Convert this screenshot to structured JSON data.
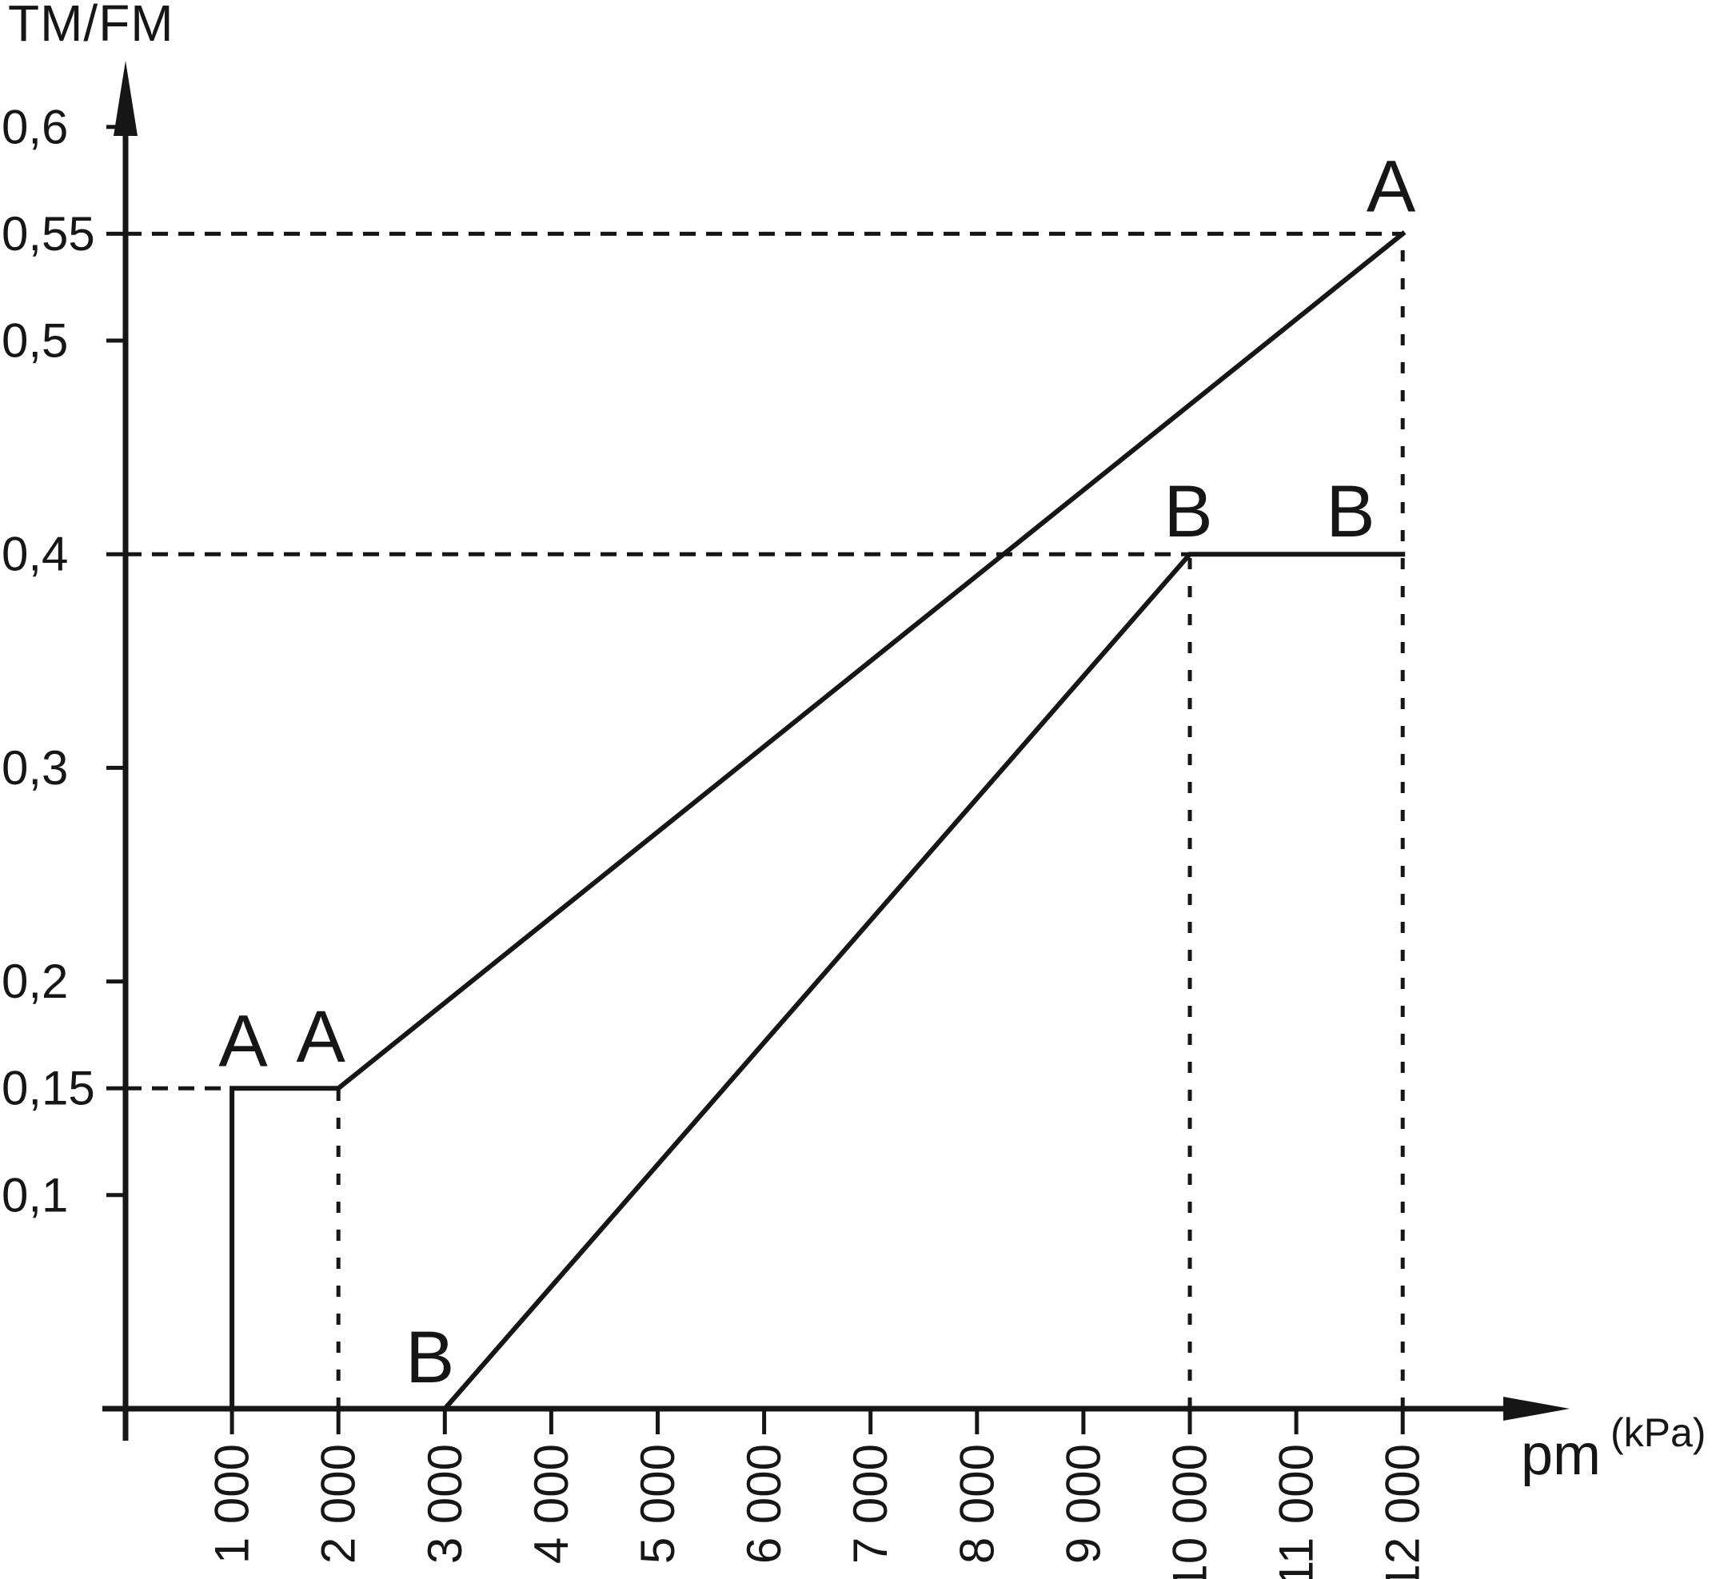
{
  "figure": {
    "y_axis_title": "TM/FM",
    "x_axis_label": "pm",
    "x_axis_unit": "(kPa)"
  },
  "chart_data": {
    "type": "line",
    "title": "",
    "xlabel": "pm (kPa)",
    "ylabel": "TM/FM",
    "x_axis": {
      "range": [
        0,
        12000
      ],
      "ticks": [
        {
          "value": 1000,
          "label": "1 000"
        },
        {
          "value": 2000,
          "label": "2 000"
        },
        {
          "value": 3000,
          "label": "3 000"
        },
        {
          "value": 4000,
          "label": "4 000"
        },
        {
          "value": 5000,
          "label": "5 000"
        },
        {
          "value": 6000,
          "label": "6 000"
        },
        {
          "value": 7000,
          "label": "7 000"
        },
        {
          "value": 8000,
          "label": "8 000"
        },
        {
          "value": 9000,
          "label": "9 000"
        },
        {
          "value": 10000,
          "label": "10 000"
        },
        {
          "value": 11000,
          "label": "11 000"
        },
        {
          "value": 12000,
          "label": "12 000"
        }
      ]
    },
    "y_axis": {
      "range": [
        0,
        0.6
      ],
      "ticks": [
        {
          "value": 0.6,
          "label": "0,6"
        },
        {
          "value": 0.55,
          "label": "0,55"
        },
        {
          "value": 0.5,
          "label": "0,5"
        },
        {
          "value": 0.4,
          "label": "0,4"
        },
        {
          "value": 0.3,
          "label": "0,3"
        },
        {
          "value": 0.2,
          "label": "0,2"
        },
        {
          "value": 0.15,
          "label": "0,15"
        },
        {
          "value": 0.1,
          "label": "0,1"
        }
      ]
    },
    "series": [
      {
        "name": "A",
        "points": [
          [
            1000,
            0
          ],
          [
            1000,
            0.15
          ],
          [
            2000,
            0.15
          ],
          [
            12000,
            0.55
          ]
        ]
      },
      {
        "name": "B",
        "points": [
          [
            3000,
            0
          ],
          [
            10000,
            0.4
          ],
          [
            12000,
            0.4
          ]
        ]
      }
    ],
    "guides": [
      {
        "orientation": "horizontal",
        "value": 0.55,
        "from_pm": 0,
        "to_pm": 12000
      },
      {
        "orientation": "horizontal",
        "value": 0.4,
        "from_pm": 0,
        "to_pm": 10000
      },
      {
        "orientation": "horizontal",
        "value": 0.15,
        "from_pm": 0,
        "to_pm": 1000
      },
      {
        "orientation": "vertical",
        "pm": 2000,
        "from_value": 0,
        "to_value": 0.15
      },
      {
        "orientation": "vertical",
        "pm": 10000,
        "from_value": 0,
        "to_value": 0.4
      },
      {
        "orientation": "vertical",
        "pm": 12000,
        "from_value": 0,
        "to_value": 0.55
      }
    ],
    "annotations": [
      {
        "text": "A",
        "pm": 1105,
        "value": 0.172
      },
      {
        "text": "A",
        "pm": 1835,
        "value": 0.174
      },
      {
        "text": "A",
        "pm": 11890,
        "value": 0.572
      },
      {
        "text": "B",
        "pm": 2860,
        "value": 0.024
      },
      {
        "text": "B",
        "pm": 9985,
        "value": 0.42
      },
      {
        "text": "B",
        "pm": 11510,
        "value": 0.42
      }
    ],
    "grid": false,
    "legend": "none",
    "colors": {
      "ink": "#161616",
      "background": "#ffffff"
    }
  }
}
